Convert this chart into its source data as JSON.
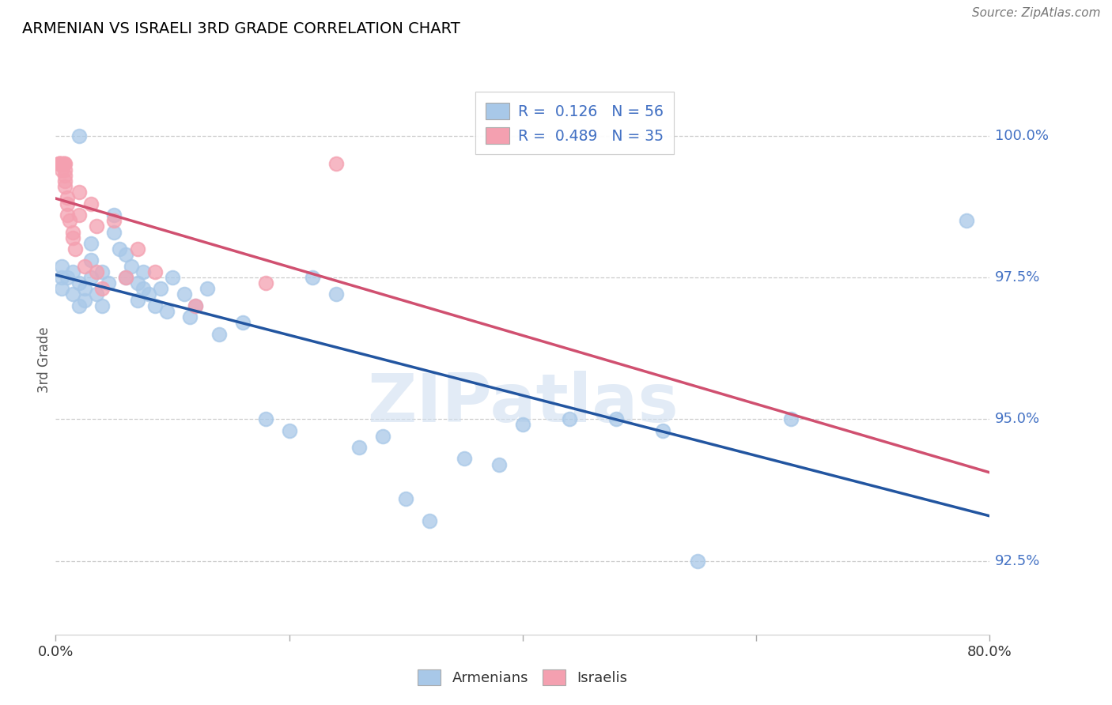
{
  "title": "ARMENIAN VS ISRAELI 3RD GRADE CORRELATION CHART",
  "source": "Source: ZipAtlas.com",
  "ylabel": "3rd Grade",
  "yticks": [
    92.5,
    95.0,
    97.5,
    100.0
  ],
  "ytick_labels": [
    "92.5%",
    "95.0%",
    "97.5%",
    "100.0%"
  ],
  "xmin": 0.0,
  "xmax": 80.0,
  "ymin": 91.2,
  "ymax": 100.9,
  "legend_blue_r": "0.126",
  "legend_blue_n": "56",
  "legend_pink_r": "0.489",
  "legend_pink_n": "35",
  "blue_scatter_color": "#a8c8e8",
  "pink_scatter_color": "#f4a0b0",
  "blue_line_color": "#2255a0",
  "pink_line_color": "#d05070",
  "blue_points_x": [
    0.5,
    0.5,
    0.5,
    1.0,
    1.5,
    1.5,
    2.0,
    2.0,
    2.5,
    2.5,
    3.0,
    3.0,
    3.0,
    3.5,
    4.0,
    4.0,
    4.5,
    5.0,
    5.0,
    5.5,
    6.0,
    6.0,
    6.5,
    7.0,
    7.0,
    7.5,
    7.5,
    8.0,
    8.5,
    9.0,
    9.5,
    10.0,
    11.0,
    11.5,
    12.0,
    13.0,
    14.0,
    16.0,
    18.0,
    20.0,
    22.0,
    24.0,
    26.0,
    28.0,
    30.0,
    32.0,
    35.0,
    38.0,
    40.0,
    44.0,
    48.0,
    52.0,
    55.0,
    63.0,
    78.0,
    2.0
  ],
  "blue_points_y": [
    97.5,
    97.7,
    97.3,
    97.5,
    97.6,
    97.2,
    97.4,
    97.0,
    97.3,
    97.1,
    98.1,
    97.8,
    97.5,
    97.2,
    97.6,
    97.0,
    97.4,
    98.6,
    98.3,
    98.0,
    97.9,
    97.5,
    97.7,
    97.4,
    97.1,
    97.6,
    97.3,
    97.2,
    97.0,
    97.3,
    96.9,
    97.5,
    97.2,
    96.8,
    97.0,
    97.3,
    96.5,
    96.7,
    95.0,
    94.8,
    97.5,
    97.2,
    94.5,
    94.7,
    93.6,
    93.2,
    94.3,
    94.2,
    94.9,
    95.0,
    95.0,
    94.8,
    92.5,
    95.0,
    98.5,
    100.0
  ],
  "pink_points_x": [
    0.3,
    0.3,
    0.3,
    0.3,
    0.5,
    0.5,
    0.5,
    0.7,
    0.7,
    0.8,
    0.8,
    0.8,
    0.8,
    0.8,
    1.0,
    1.0,
    1.0,
    1.2,
    1.5,
    1.5,
    1.7,
    2.0,
    2.0,
    2.5,
    3.0,
    3.5,
    3.5,
    4.0,
    5.0,
    6.0,
    7.0,
    8.5,
    12.0,
    18.0,
    24.0
  ],
  "pink_points_y": [
    99.5,
    99.5,
    99.5,
    99.5,
    99.5,
    99.5,
    99.4,
    99.5,
    99.5,
    99.5,
    99.4,
    99.3,
    99.2,
    99.1,
    98.9,
    98.8,
    98.6,
    98.5,
    98.3,
    98.2,
    98.0,
    99.0,
    98.6,
    97.7,
    98.8,
    98.4,
    97.6,
    97.3,
    98.5,
    97.5,
    98.0,
    97.6,
    97.0,
    97.4,
    99.5
  ]
}
